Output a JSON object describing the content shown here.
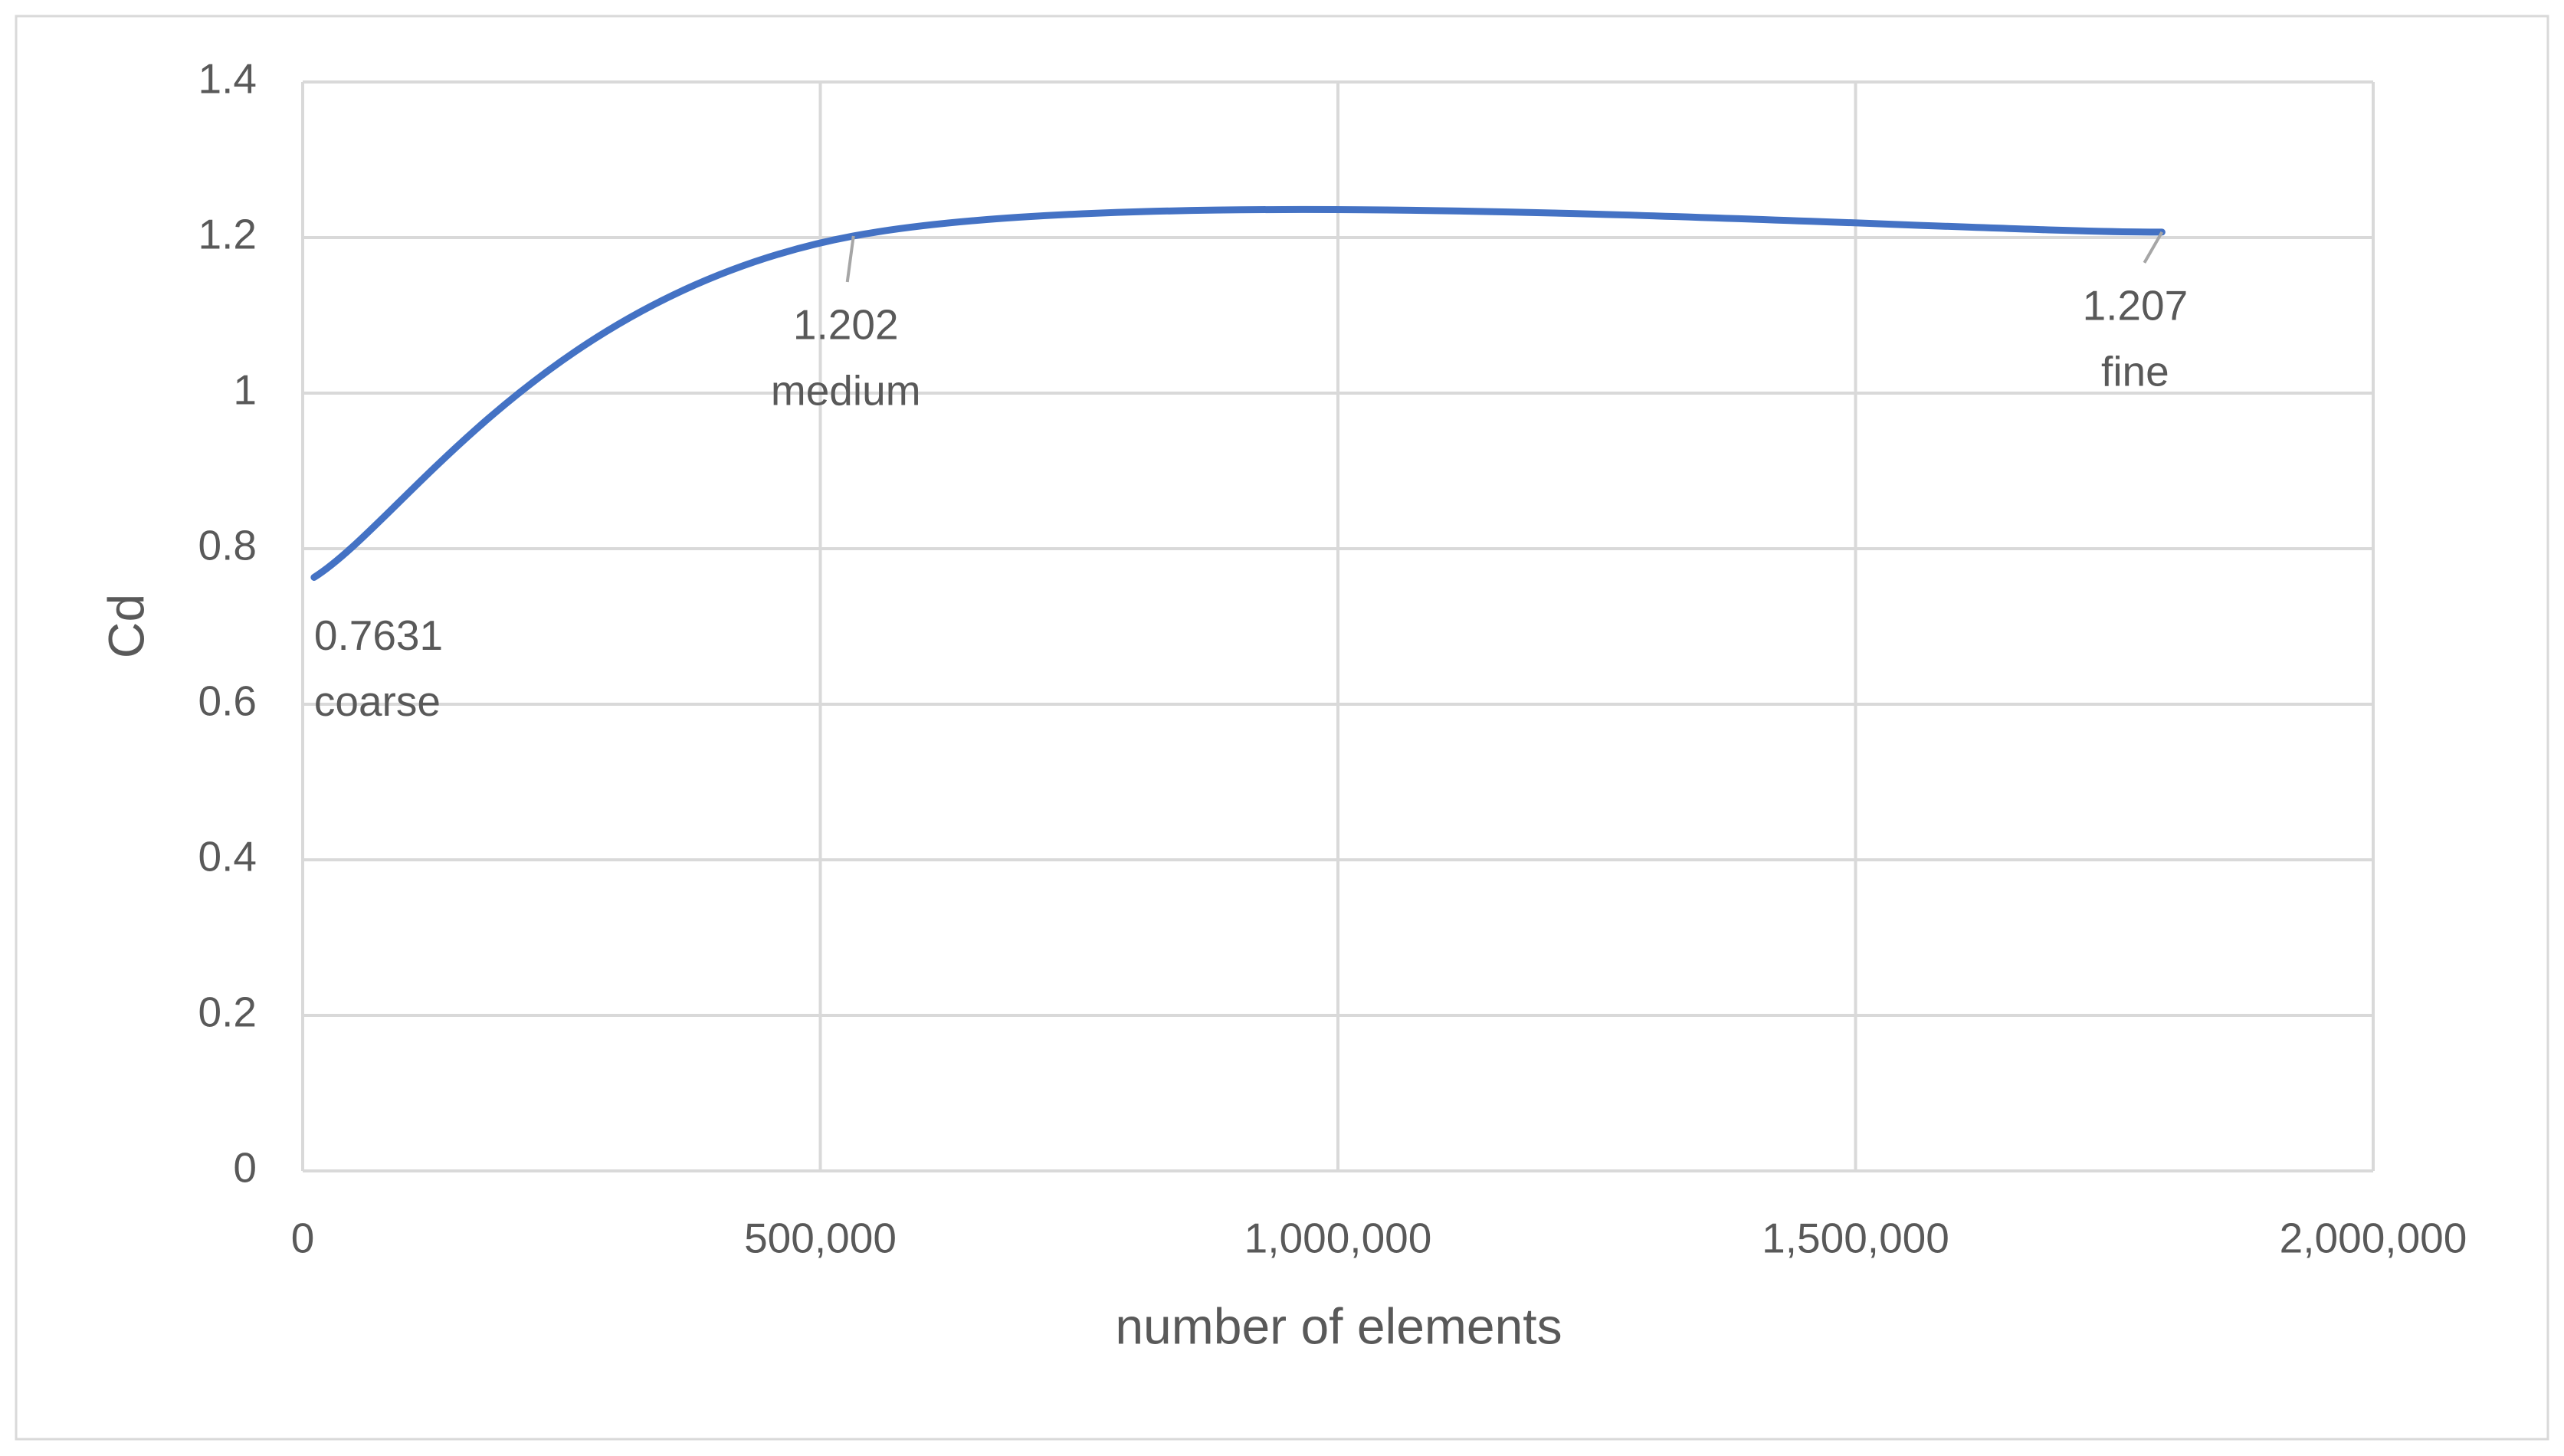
{
  "chart_data": {
    "type": "line",
    "x_label": "number of elements",
    "y_label": "Cd",
    "series": [
      {
        "color": "#4472c4",
        "x": [
          11000,
          532000,
          1796000
        ],
        "values": [
          0.7631,
          1.202,
          1.207
        ],
        "point_labels": [
          "coarse",
          "medium",
          "fine"
        ]
      }
    ],
    "xlim": [
      0,
      2000000
    ],
    "xticks": [
      0,
      {
        "value": 500000,
        "label": "500,000"
      },
      {
        "value": 1000000,
        "label": "1,000,000"
      },
      {
        "value": 1500000,
        "label": "1,500,000"
      },
      {
        "value": 2000000,
        "label": "2,000,000"
      }
    ],
    "ylim": [
      0,
      1.4
    ],
    "yticks": [
      0,
      0.2,
      0.4,
      0.6,
      0.8,
      1,
      1.2,
      1.4
    ],
    "grid": true
  }
}
